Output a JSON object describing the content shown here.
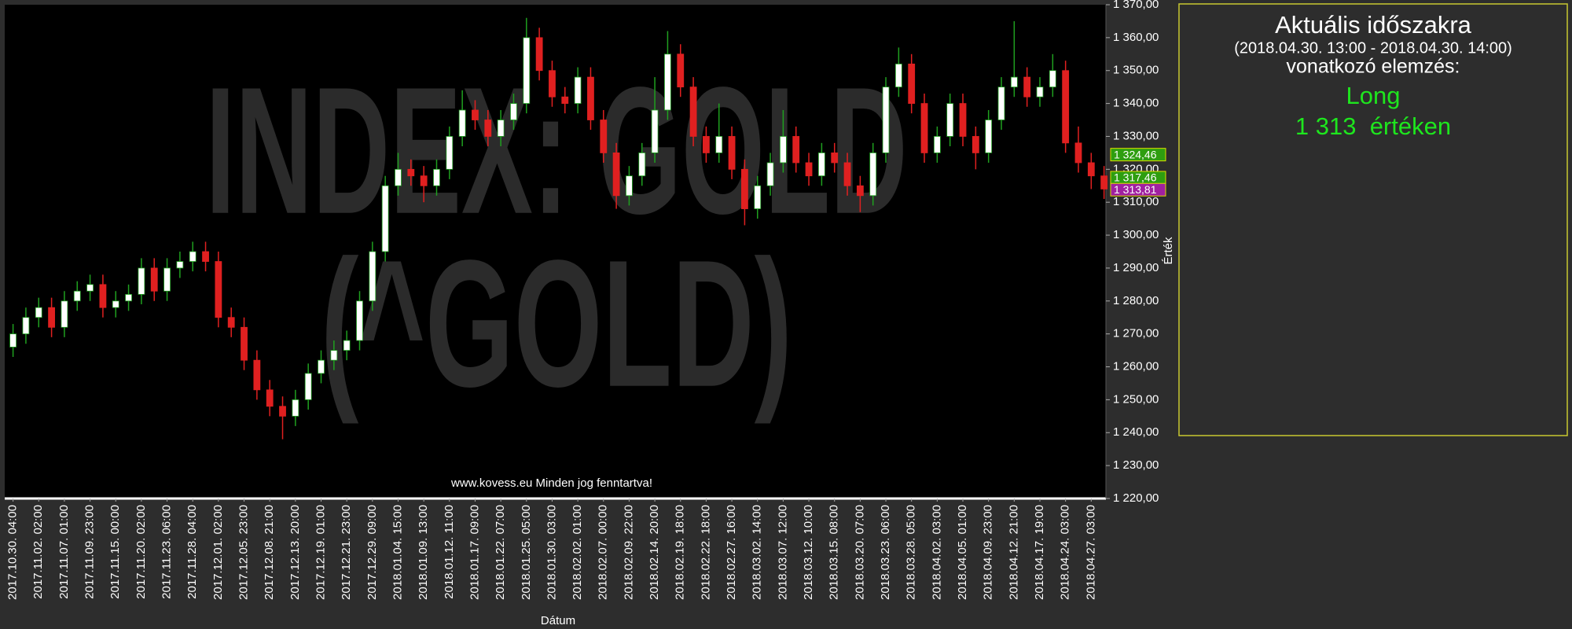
{
  "chart_data": {
    "type": "candlestick",
    "watermark": [
      "INDEX: GOLD",
      "(^GOLD)"
    ],
    "footer": "www.kovess.eu Minden jog fenntartva!",
    "x_label": "Dátum",
    "y_label": "Érték",
    "up_color": "#1fa01f",
    "down_color": "#e02020",
    "body_up": "#ffffff",
    "body_down": "#e02020",
    "categories": [
      "2017.10.30. 04:00",
      null,
      "2017.11.02. 02:00",
      null,
      "2017.11.07. 01:00",
      null,
      "2017.11.09. 23:00",
      null,
      "2017.11.15. 00:00",
      null,
      "2017.11.20. 02:00",
      null,
      "2017.11.23. 06:00",
      null,
      "2017.11.28. 04:00",
      null,
      "2017.12.01. 02:00",
      null,
      "2017.12.05. 23:00",
      null,
      "2017.12.08. 21:00",
      null,
      "2017.12.13. 20:00",
      null,
      "2017.12.19. 01:00",
      null,
      "2017.12.21. 23:00",
      null,
      "2017.12.29. 09:00",
      null,
      "2018.01.04. 15:00",
      null,
      "2018.01.09. 13:00",
      null,
      "2018.01.12. 11:00",
      null,
      "2018.01.17. 09:00",
      null,
      "2018.01.22. 07:00",
      null,
      "2018.01.25. 05:00",
      null,
      "2018.01.30. 03:00",
      null,
      "2018.02.02. 01:00",
      null,
      "2018.02.07. 00:00",
      null,
      "2018.02.09. 22:00",
      null,
      "2018.02.14. 20:00",
      null,
      "2018.02.19. 18:00",
      null,
      "2018.02.22. 18:00",
      null,
      "2018.02.27. 16:00",
      null,
      "2018.03.02. 14:00",
      null,
      "2018.03.07. 12:00",
      null,
      "2018.03.12. 10:00",
      null,
      "2018.03.15. 08:00",
      null,
      "2018.03.20. 07:00",
      null,
      "2018.03.23. 06:00",
      null,
      "2018.03.28. 05:00",
      null,
      "2018.04.02. 03:00",
      null,
      "2018.04.05. 01:00",
      null,
      "2018.04.09. 23:00",
      null,
      "2018.04.12. 21:00",
      null,
      "2018.04.17. 19:00",
      null,
      "2018.04.24. 03:00",
      null,
      "2018.04.27. 03:00",
      null
    ],
    "open": [
      1266,
      1270,
      1275,
      1278,
      1272,
      1280,
      1283,
      1285,
      1278,
      1280,
      1282,
      1290,
      1283,
      1290,
      1292,
      1295,
      1292,
      1275,
      1272,
      1262,
      1253,
      1248,
      1245,
      1250,
      1258,
      1262,
      1265,
      1268,
      1280,
      1295,
      1315,
      1320,
      1318,
      1315,
      1320,
      1330,
      1338,
      1335,
      1330,
      1335,
      1340,
      1360,
      1350,
      1342,
      1340,
      1348,
      1335,
      1325,
      1312,
      1318,
      1325,
      1338,
      1355,
      1345,
      1330,
      1325,
      1330,
      1320,
      1308,
      1315,
      1322,
      1330,
      1322,
      1318,
      1325,
      1322,
      1315,
      1312,
      1325,
      1345,
      1352,
      1340,
      1325,
      1330,
      1340,
      1330,
      1325,
      1335,
      1345,
      1348,
      1342,
      1345,
      1350,
      1328,
      1322,
      1318
    ],
    "high": [
      1273,
      1278,
      1281,
      1281,
      1283,
      1286,
      1288,
      1288,
      1283,
      1285,
      1293,
      1293,
      1293,
      1295,
      1298,
      1298,
      1295,
      1278,
      1275,
      1265,
      1256,
      1251,
      1253,
      1261,
      1265,
      1268,
      1271,
      1283,
      1298,
      1318,
      1325,
      1323,
      1321,
      1323,
      1333,
      1344,
      1341,
      1338,
      1338,
      1343,
      1366,
      1363,
      1353,
      1345,
      1351,
      1351,
      1338,
      1328,
      1321,
      1328,
      1348,
      1362,
      1358,
      1348,
      1333,
      1340,
      1333,
      1323,
      1318,
      1325,
      1338,
      1333,
      1325,
      1328,
      1328,
      1325,
      1318,
      1328,
      1348,
      1357,
      1355,
      1343,
      1333,
      1343,
      1343,
      1333,
      1338,
      1348,
      1365,
      1351,
      1348,
      1355,
      1353,
      1333,
      1325,
      1321
    ],
    "low": [
      1263,
      1267,
      1272,
      1269,
      1269,
      1277,
      1280,
      1275,
      1275,
      1277,
      1279,
      1280,
      1280,
      1287,
      1289,
      1289,
      1272,
      1269,
      1259,
      1250,
      1245,
      1238,
      1242,
      1247,
      1255,
      1259,
      1262,
      1265,
      1277,
      1292,
      1312,
      1315,
      1310,
      1312,
      1317,
      1327,
      1332,
      1327,
      1327,
      1332,
      1337,
      1347,
      1339,
      1337,
      1337,
      1332,
      1322,
      1308,
      1309,
      1315,
      1322,
      1335,
      1342,
      1327,
      1322,
      1322,
      1317,
      1303,
      1305,
      1312,
      1319,
      1319,
      1315,
      1315,
      1319,
      1312,
      1307,
      1309,
      1322,
      1342,
      1337,
      1322,
      1322,
      1327,
      1327,
      1320,
      1322,
      1332,
      1342,
      1339,
      1339,
      1342,
      1325,
      1319,
      1314,
      1311
    ],
    "close": [
      1270,
      1275,
      1278,
      1272,
      1280,
      1283,
      1285,
      1278,
      1280,
      1282,
      1290,
      1283,
      1290,
      1292,
      1295,
      1292,
      1275,
      1272,
      1262,
      1253,
      1248,
      1245,
      1250,
      1258,
      1262,
      1265,
      1268,
      1280,
      1295,
      1315,
      1320,
      1318,
      1315,
      1320,
      1330,
      1338,
      1335,
      1330,
      1335,
      1340,
      1360,
      1350,
      1342,
      1340,
      1348,
      1335,
      1325,
      1312,
      1318,
      1325,
      1338,
      1355,
      1345,
      1330,
      1325,
      1330,
      1320,
      1308,
      1315,
      1322,
      1330,
      1322,
      1318,
      1325,
      1322,
      1315,
      1312,
      1325,
      1345,
      1352,
      1340,
      1325,
      1330,
      1340,
      1330,
      1325,
      1335,
      1345,
      1348,
      1342,
      1345,
      1350,
      1328,
      1322,
      1318,
      1314
    ],
    "ylim": [
      1220,
      1370
    ],
    "yticks": [
      {
        "value": 1220,
        "label": "1 220,00"
      },
      {
        "value": 1230,
        "label": "1 230,00"
      },
      {
        "value": 1240,
        "label": "1 240,00"
      },
      {
        "value": 1250,
        "label": "1 250,00"
      },
      {
        "value": 1260,
        "label": "1 260,00"
      },
      {
        "value": 1270,
        "label": "1 270,00"
      },
      {
        "value": 1280,
        "label": "1 280,00"
      },
      {
        "value": 1290,
        "label": "1 290,00"
      },
      {
        "value": 1300,
        "label": "1 300,00"
      },
      {
        "value": 1310,
        "label": "1 310,00"
      },
      {
        "value": 1320,
        "label": "1 320,00"
      },
      {
        "value": 1330,
        "label": "1 330,00"
      },
      {
        "value": 1340,
        "label": "1 340,00"
      },
      {
        "value": 1350,
        "label": "1 350,00"
      },
      {
        "value": 1360,
        "label": "1 360,00"
      },
      {
        "value": 1370,
        "label": "1 370,00"
      }
    ],
    "price_labels": [
      {
        "value": 1324.46,
        "label": "1 324,46",
        "color": "#2e9e10"
      },
      {
        "value": 1317.46,
        "label": "1 317,46",
        "color": "#2e9e10"
      },
      {
        "value": 1313.81,
        "label": "1 313,81",
        "color": "#a020a0"
      }
    ],
    "analysis_panel": {
      "title": "Aktuális időszakra",
      "period": "(2018.04.30. 13:00 - 2018.04.30. 14:00)",
      "subtitle": "vonatkozó elemzés:",
      "signal": "Long",
      "price": "1 313  értéken"
    }
  }
}
